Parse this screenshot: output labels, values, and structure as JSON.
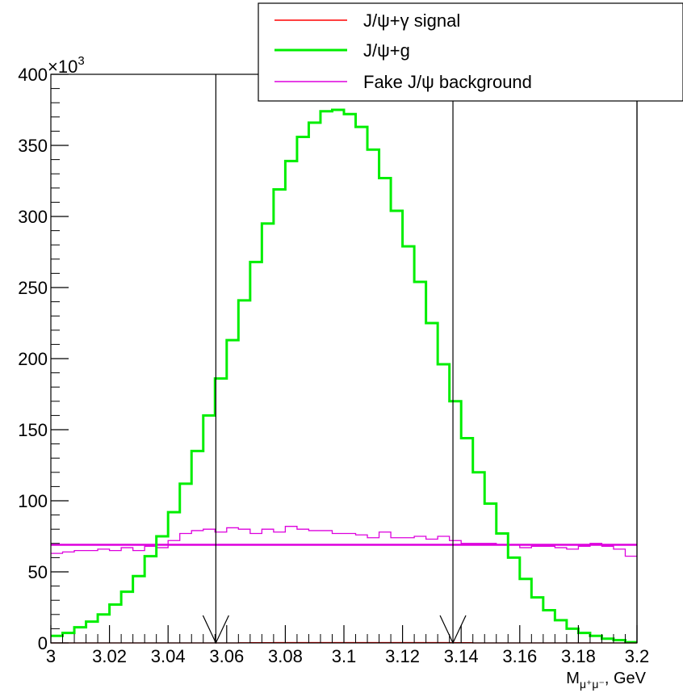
{
  "chart_data": {
    "type": "line",
    "style": "step-histogram",
    "x_label_main": "M",
    "x_label_sub": "μ⁺μ⁻",
    "x_label_suffix": ", GeV",
    "y_multiplier_base": "×10",
    "y_multiplier_exp": "3",
    "xlim": [
      3.0,
      3.2
    ],
    "ylim": [
      0,
      400
    ],
    "x_ticks": [
      3.0,
      3.02,
      3.04,
      3.06,
      3.08,
      3.1,
      3.12,
      3.14,
      3.16,
      3.18,
      3.2
    ],
    "x_tick_labels": [
      "3",
      "3.02",
      "3.04",
      "3.06",
      "3.08",
      "3.1",
      "3.12",
      "3.14",
      "3.16",
      "3.18",
      "3.2"
    ],
    "y_ticks": [
      0,
      50,
      100,
      150,
      200,
      250,
      300,
      350,
      400
    ],
    "y_tick_labels": [
      "0",
      "50",
      "100",
      "150",
      "200",
      "250",
      "300",
      "350",
      "400"
    ],
    "bin_edges_start": 3.0,
    "bin_width": 0.004,
    "cut_lines_x": [
      3.0563,
      3.1372,
      3.2
    ],
    "legend_position": "top-right",
    "grid": false,
    "series": [
      {
        "name": "J/ψ+γ signal",
        "color": "#ff0000",
        "values": [
          0,
          0,
          0,
          0,
          0,
          0,
          0,
          0,
          0,
          0,
          0,
          0,
          0,
          0,
          0,
          0,
          0.1,
          0.2,
          0.2,
          0.3,
          0.3,
          0.3,
          0.3,
          0.3,
          0.3,
          0.3,
          0.3,
          0.3,
          0.3,
          0.3,
          0.3,
          0.3,
          0.3,
          0.3,
          0.2,
          0.2,
          0,
          0,
          0,
          0,
          0,
          0,
          0,
          0,
          0,
          0,
          0,
          0,
          0,
          0
        ]
      },
      {
        "name": "J/ψ+g",
        "color": "#00ee00",
        "values": [
          5,
          7,
          11,
          15,
          20,
          27,
          36,
          47,
          61,
          75,
          92,
          112,
          135,
          160,
          186,
          213,
          241,
          268,
          295,
          319,
          339,
          356,
          366,
          374,
          375,
          372,
          363,
          347,
          327,
          304,
          279,
          254,
          225,
          196,
          170,
          144,
          120,
          98,
          77,
          60,
          45,
          32,
          23,
          16,
          10,
          7,
          5,
          3,
          2,
          0.5
        ]
      },
      {
        "name": "Fake J/ψ background",
        "color": "#dd00dd",
        "values": [
          63,
          64,
          65,
          65,
          66,
          65,
          67,
          65,
          68,
          67,
          72,
          77,
          79,
          80,
          78,
          81,
          80,
          77,
          80,
          78,
          82,
          80,
          79,
          79,
          77,
          77,
          76,
          74,
          78,
          74,
          74,
          75,
          73,
          75,
          72,
          70,
          70,
          70,
          69,
          69,
          67,
          68,
          68,
          67,
          66,
          68,
          70,
          68,
          66,
          61
        ],
        "fit_value": 69
      }
    ]
  }
}
